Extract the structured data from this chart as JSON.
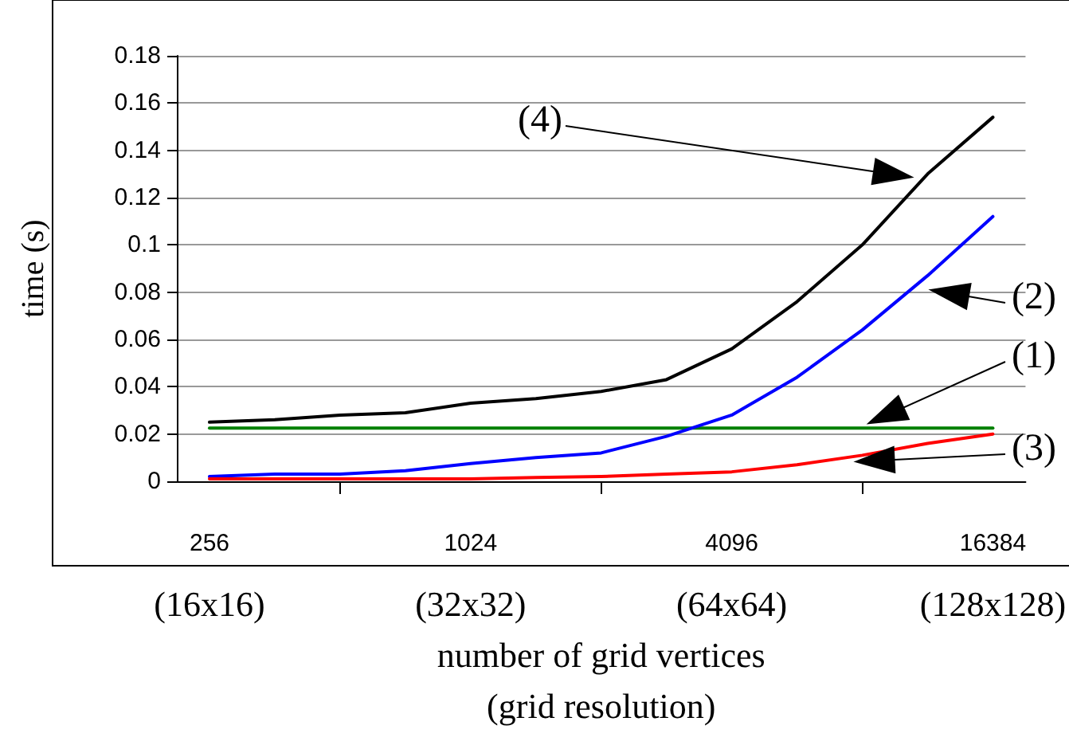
{
  "chart_data": {
    "type": "line",
    "ylabel": "time (s)",
    "xlabel": "number of grid vertices\n(grid resolution)",
    "categories": [
      "256\n(16x16)",
      null,
      null,
      null,
      "1024\n(32x32)",
      null,
      null,
      null,
      "4096\n(64x64)",
      null,
      null,
      null,
      "16384\n(128x128)"
    ],
    "series": [
      {
        "color": "#008000",
        "values": [
          0.0225,
          0.0225,
          0.0225,
          0.0225,
          0.0225,
          0.0225,
          0.0225,
          0.0225,
          0.0225,
          0.0225,
          0.0225,
          0.0225,
          0.0225
        ]
      },
      {
        "color": "#0000ff",
        "values": [
          0.002,
          0.003,
          0.003,
          0.0045,
          0.0075,
          0.01,
          0.012,
          0.019,
          0.028,
          0.044,
          0.064,
          0.087,
          0.112
        ]
      },
      {
        "color": "#ff0000",
        "values": [
          0.001,
          0.001,
          0.001,
          0.001,
          0.001,
          0.0016,
          0.002,
          0.003,
          0.004,
          0.007,
          0.011,
          0.016,
          0.02
        ]
      },
      {
        "color": "#000000",
        "values": [
          0.025,
          0.026,
          0.028,
          0.029,
          0.033,
          0.035,
          0.038,
          0.043,
          0.056,
          0.076,
          0.1,
          0.13,
          0.154
        ]
      }
    ],
    "annotations": [
      "(1)",
      "(2)",
      "(3)",
      "(4)"
    ],
    "ylim": [
      0,
      0.18
    ],
    "yticks": [
      0,
      0.02,
      0.04,
      0.06,
      0.08,
      0.1,
      0.12,
      0.14,
      0.16,
      0.18
    ],
    "grid": "y",
    "marker": "none",
    "line_style": "solid"
  }
}
